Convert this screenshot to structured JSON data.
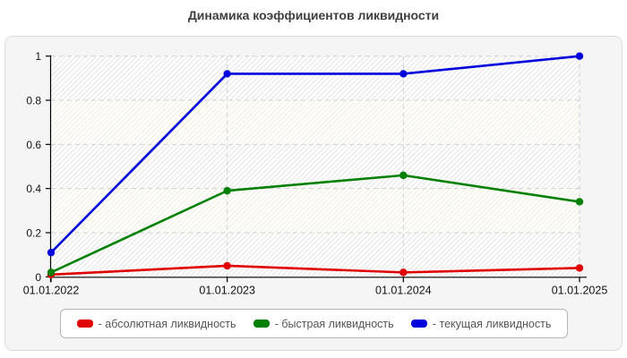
{
  "title": "Динамика коэффициентов ликвидности",
  "chart_data": {
    "type": "line",
    "title": "Динамика коэффициентов ликвидности",
    "categories": [
      "01.01.2022",
      "01.01.2023",
      "01.01.2024",
      "01.01.2025"
    ],
    "series": [
      {
        "name": "абсолютная ликвидность",
        "color": "#e00000",
        "values": [
          0.01,
          0.05,
          0.02,
          0.04
        ]
      },
      {
        "name": "быстрая ликвидность",
        "color": "#008000",
        "values": [
          0.02,
          0.39,
          0.46,
          0.34
        ]
      },
      {
        "name": "текущая ликвидность",
        "color": "#0000dd",
        "values": [
          0.11,
          0.92,
          0.92,
          1.0
        ]
      }
    ],
    "xlabel": "",
    "ylabel": "",
    "ylim": [
      0,
      1
    ],
    "yticks": [
      0,
      0.2,
      0.4,
      0.6,
      0.8,
      1
    ],
    "ytick_labels": [
      "0",
      "0.2",
      "0.4",
      "0.6",
      "0.8",
      "1"
    ],
    "grid": true,
    "grid_style": "dashed",
    "legend_position": "bottom"
  },
  "legend": {
    "items": [
      {
        "label": "- абсолютная ликвидность",
        "color": "#e00000"
      },
      {
        "label": "- быстрая ликвидность",
        "color": "#008000"
      },
      {
        "label": "- текущая ликвидность",
        "color": "#0000dd"
      }
    ]
  },
  "colors": {
    "panel_bg": "#f5f5f5",
    "hatch_gray": "#e3e3e3",
    "hatch_cream": "#f0ecd9",
    "gridline": "#d0d0d0",
    "axis": "#000000"
  }
}
